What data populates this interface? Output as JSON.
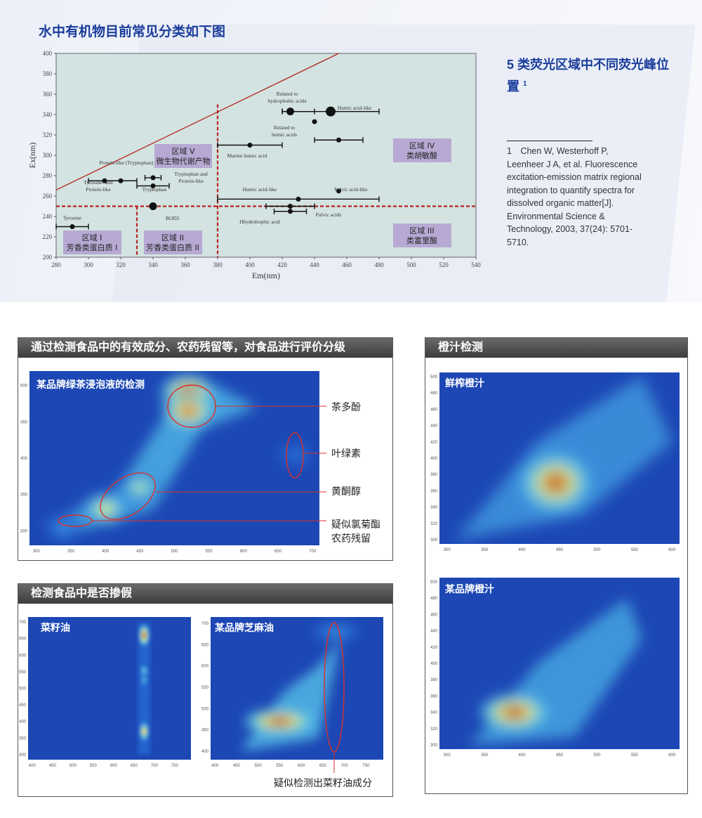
{
  "page": {
    "title": "水中有机物目前常见分类如下图",
    "side_title": "5 类荧光区域中不同荧光峰位置",
    "side_title_sup": "1",
    "reference": "1　Chen W, Westerhoff P, Leenheer J A, et al. Fluorescence excitation-emission matrix regional integration to quantify spectra for dissolved organic matter[J]. Environmental Science & Technology, 2003, 37(24): 5701-5710."
  },
  "chart_data": [
    {
      "type": "scatter",
      "xlabel": "Em(nm)",
      "ylabel": "Ex(nm)",
      "xlim": [
        280,
        540
      ],
      "ylim": [
        200,
        400
      ],
      "x_ticks": [
        280,
        300,
        320,
        340,
        360,
        380,
        400,
        420,
        440,
        460,
        480,
        500,
        520,
        540
      ],
      "y_ticks": [
        200,
        220,
        240,
        260,
        280,
        300,
        320,
        340,
        360,
        380,
        400
      ],
      "grid": false,
      "points": [
        {
          "label": "Tyrosine",
          "x": 290,
          "y": 230,
          "xerr": [
            280,
            300
          ]
        },
        {
          "label": "Tyrosine- and Protein-like",
          "x": 310,
          "y": 275,
          "xerr": [
            300,
            330
          ]
        },
        {
          "label": "Protein-like (Tryptophan)",
          "x": 320,
          "y": 275
        },
        {
          "label": "Tryptophan and Protein-like",
          "x": 340,
          "y": 278,
          "xerr": [
            335,
            345
          ]
        },
        {
          "label": "Tryptophan",
          "x": 340,
          "y": 270,
          "xerr": [
            330,
            350
          ]
        },
        {
          "label": "BOD5",
          "x": 340,
          "y": 250
        },
        {
          "label": "Related to hydrophobic acids",
          "x": 425,
          "y": 343,
          "xerr": [
            420,
            440
          ]
        },
        {
          "label": "Humic acid-like",
          "x": 450,
          "y": 343,
          "xerr": [
            420,
            480
          ]
        },
        {
          "label": "Related to humic acids",
          "x": 440,
          "y": 333
        },
        {
          "label": "Marine humic acid",
          "x": 400,
          "y": 310,
          "xerr": [
            380,
            420
          ]
        },
        {
          "label": "",
          "x": 455,
          "y": 315,
          "xerr": [
            440,
            470
          ]
        },
        {
          "label": "Humic acid-like",
          "x": 430,
          "y": 257,
          "xerr": [
            380,
            480
          ]
        },
        {
          "label": "Fulvic acid-like",
          "x": 455,
          "y": 265
        },
        {
          "label": "Hhydrobophic acid",
          "x": 425,
          "y": 250,
          "xerr": [
            410,
            440
          ]
        },
        {
          "label": "Fulvic acids",
          "x": 425,
          "y": 245,
          "xerr": [
            415,
            435
          ]
        }
      ],
      "regions": [
        {
          "name": "区域 I",
          "desc": "芳香类蛋白质 I",
          "em": [
            280,
            330
          ],
          "ex": [
            200,
            250
          ]
        },
        {
          "name": "区域 II",
          "desc": "芳香类蛋白质 II",
          "em": [
            330,
            380
          ],
          "ex": [
            200,
            250
          ]
        },
        {
          "name": "区域 III",
          "desc": "类富里酸",
          "em": [
            380,
            540
          ],
          "ex": [
            200,
            250
          ]
        },
        {
          "name": "区域 IV",
          "desc": "类胡敏酸",
          "em": [
            380,
            540
          ],
          "ex": [
            250,
            400
          ]
        },
        {
          "name": "区域 V",
          "desc": "微生物代谢产物",
          "em": [
            280,
            380
          ],
          "ex": [
            250,
            400
          ]
        }
      ]
    },
    {
      "type": "heatmap",
      "title": "某品牌绿茶浸泡液的检测",
      "x_ticks": [
        300,
        350,
        400,
        450,
        500,
        550,
        600,
        650,
        700
      ],
      "y_ticks": [
        300,
        350,
        400,
        450,
        500
      ],
      "peaks": [
        {
          "x": 520,
          "y": 490,
          "intensity": 1.0
        },
        {
          "x": 520,
          "y": 465,
          "intensity": 0.95
        },
        {
          "x": 400,
          "y": 330,
          "intensity": 0.7
        },
        {
          "x": 450,
          "y": 360,
          "intensity": 0.6
        },
        {
          "x": 340,
          "y": 305,
          "intensity": 0.3
        },
        {
          "x": 675,
          "y": 405,
          "intensity": 0.2
        }
      ]
    },
    {
      "type": "heatmap",
      "title": "菜籽油",
      "x_ticks": [
        400,
        450,
        500,
        550,
        600,
        650,
        700,
        750
      ],
      "y_ticks": [
        300,
        350,
        400,
        450,
        500,
        550,
        600,
        650,
        700
      ],
      "peaks": [
        {
          "x": 675,
          "y": 660,
          "intensity": 1.0
        },
        {
          "x": 675,
          "y": 370,
          "intensity": 0.8
        },
        {
          "x": 675,
          "y": 550,
          "intensity": 0.5
        },
        {
          "x": 675,
          "y": 525,
          "intensity": 0.4
        }
      ]
    },
    {
      "type": "heatmap",
      "title": "某品牌芝麻油",
      "x_ticks": [
        400,
        450,
        500,
        550,
        600,
        650,
        700,
        750
      ],
      "y_ticks": [
        400,
        450,
        500,
        550,
        600,
        650,
        700
      ],
      "peaks": [
        {
          "x": 550,
          "y": 470,
          "intensity": 1.0
        },
        {
          "x": 680,
          "y": 680,
          "intensity": 0.3
        }
      ]
    },
    {
      "type": "heatmap",
      "title": "鲜榨橙汁",
      "x_ticks": [
        300,
        350,
        400,
        450,
        500,
        550,
        600
      ],
      "y_ticks": [
        300,
        320,
        340,
        360,
        380,
        400,
        420,
        440,
        460,
        480,
        500
      ],
      "peaks": [
        {
          "x": 445,
          "y": 370,
          "intensity": 1.0
        }
      ]
    },
    {
      "type": "heatmap",
      "title": "某品牌橙汁",
      "x_ticks": [
        300,
        350,
        400,
        450,
        500,
        550,
        600
      ],
      "y_ticks": [
        300,
        320,
        340,
        360,
        380,
        400,
        420,
        440,
        460,
        480,
        500
      ],
      "peaks": [
        {
          "x": 390,
          "y": 340,
          "intensity": 1.0
        }
      ]
    }
  ],
  "panels": {
    "tea": {
      "header": "通过检测食品中的有效成分、农药残留等，对食品进行评价分级",
      "callouts": [
        "茶多酚",
        "叶绿素",
        "黄酮醇",
        "疑似氯菊酯",
        "农药残留"
      ]
    },
    "oil": {
      "header": "检测食品中是否掺假",
      "callout": "疑似检测出菜籽油成分"
    },
    "juice": {
      "header": "橙汁检测"
    }
  }
}
